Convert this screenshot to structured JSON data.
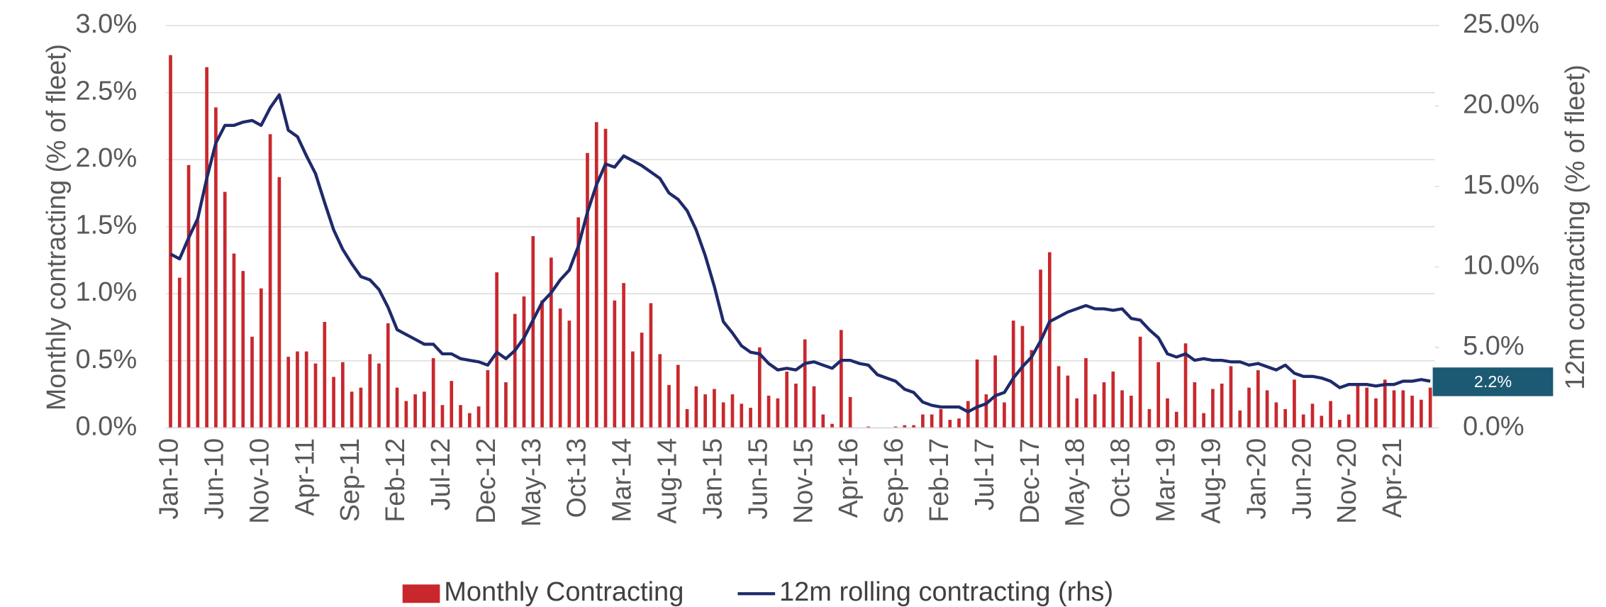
{
  "chart_data": {
    "type": "bar-line",
    "y_label": "Monthly contracting (% of fleet)",
    "y2_label": "12m contracting (% of fleet)",
    "annotation": "2.2%",
    "categories": [
      "Jan-10",
      null,
      null,
      null,
      null,
      "Jun-10",
      null,
      null,
      null,
      null,
      "Nov-10",
      null,
      null,
      null,
      null,
      "Apr-11",
      null,
      null,
      null,
      null,
      "Sep-11",
      null,
      null,
      null,
      null,
      "Feb-12",
      null,
      null,
      null,
      null,
      "Jul-12",
      null,
      null,
      null,
      null,
      "Dec-12",
      null,
      null,
      null,
      null,
      "May-13",
      null,
      null,
      null,
      null,
      "Oct-13",
      null,
      null,
      null,
      null,
      "Mar-14",
      null,
      null,
      null,
      null,
      "Aug-14",
      null,
      null,
      null,
      null,
      "Jan-15",
      null,
      null,
      null,
      null,
      "Jun-15",
      null,
      null,
      null,
      null,
      "Nov-15",
      null,
      null,
      null,
      null,
      "Apr-16",
      null,
      null,
      null,
      null,
      "Sep-16",
      null,
      null,
      null,
      null,
      "Feb-17",
      null,
      null,
      null,
      null,
      "Jul-17",
      null,
      null,
      null,
      null,
      "Dec-17",
      null,
      null,
      null,
      null,
      "May-18",
      null,
      null,
      null,
      null,
      "Oct-18",
      null,
      null,
      null,
      null,
      "Mar-19",
      null,
      null,
      null,
      null,
      "Aug-19",
      null,
      null,
      null,
      null,
      "Jan-20",
      null,
      null,
      null,
      null,
      "Jun-20",
      null,
      null,
      null,
      null,
      "Nov-20",
      null,
      null,
      null,
      null,
      "Apr-21",
      null,
      null,
      null,
      null
    ],
    "series": [
      {
        "name": "Monthly Contracting",
        "type": "bar",
        "color": "#c8282d",
        "values": [
          2.78,
          1.12,
          1.96,
          1.55,
          2.69,
          2.39,
          1.76,
          1.3,
          1.17,
          0.68,
          1.04,
          2.19,
          1.87,
          0.53,
          0.57,
          0.57,
          0.48,
          0.79,
          0.38,
          0.49,
          0.27,
          0.3,
          0.55,
          0.48,
          0.78,
          0.3,
          0.2,
          0.25,
          0.27,
          0.52,
          0.17,
          0.35,
          0.17,
          0.11,
          0.16,
          0.43,
          1.16,
          0.34,
          0.85,
          0.98,
          1.43,
          0.95,
          1.27,
          0.89,
          0.8,
          1.57,
          2.05,
          2.28,
          2.23,
          0.95,
          1.08,
          0.57,
          0.71,
          0.93,
          0.55,
          0.32,
          0.47,
          0.14,
          0.31,
          0.25,
          0.29,
          0.19,
          0.25,
          0.18,
          0.15,
          0.6,
          0.24,
          0.22,
          0.42,
          0.33,
          0.66,
          0.31,
          0.1,
          0.03,
          0.73,
          0.23,
          0.0,
          0.01,
          0.0,
          0.0,
          0.01,
          0.02,
          0.02,
          0.1,
          0.1,
          0.14,
          0.06,
          0.07,
          0.2,
          0.51,
          0.25,
          0.54,
          0.19,
          0.8,
          0.76,
          0.58,
          1.18,
          1.31,
          0.46,
          0.39,
          0.22,
          0.52,
          0.25,
          0.34,
          0.42,
          0.28,
          0.24,
          0.68,
          0.14,
          0.49,
          0.22,
          0.12,
          0.63,
          0.34,
          0.11,
          0.29,
          0.33,
          0.46,
          0.13,
          0.3,
          0.43,
          0.28,
          0.19,
          0.14,
          0.36,
          0.1,
          0.18,
          0.09,
          0.2,
          0.06,
          0.1,
          0.32,
          0.3,
          0.22,
          0.36,
          0.28,
          0.28,
          0.24,
          0.21,
          0.3
        ]
      },
      {
        "name": "12m rolling contracting (rhs)",
        "type": "line",
        "axis": "y2",
        "color": "#1f2a6b",
        "values": [
          10.8,
          10.5,
          11.8,
          13.0,
          15.5,
          17.7,
          18.8,
          18.8,
          19.0,
          19.1,
          18.8,
          19.9,
          20.7,
          18.5,
          18.1,
          16.9,
          15.8,
          14.0,
          12.3,
          11.1,
          10.2,
          9.4,
          9.2,
          8.6,
          7.5,
          6.1,
          5.8,
          5.5,
          5.2,
          5.2,
          4.6,
          4.6,
          4.3,
          4.2,
          4.1,
          3.9,
          4.7,
          4.3,
          4.8,
          5.6,
          6.7,
          7.8,
          8.4,
          9.2,
          9.8,
          11.3,
          13.4,
          15.1,
          16.4,
          16.2,
          16.9,
          16.6,
          16.3,
          15.9,
          15.5,
          14.6,
          14.2,
          13.5,
          12.3,
          10.7,
          8.8,
          6.6,
          5.9,
          5.1,
          4.7,
          4.6,
          4.0,
          3.6,
          3.7,
          3.6,
          4.0,
          4.1,
          3.9,
          3.7,
          4.2,
          4.2,
          4.0,
          3.9,
          3.3,
          3.1,
          2.9,
          2.4,
          2.2,
          1.6,
          1.4,
          1.3,
          1.3,
          1.3,
          1.0,
          1.3,
          1.5,
          2.0,
          2.2,
          3.1,
          3.8,
          4.4,
          5.4,
          6.6,
          6.9,
          7.2,
          7.4,
          7.6,
          7.4,
          7.4,
          7.3,
          7.4,
          6.8,
          6.7,
          6.1,
          5.6,
          4.6,
          4.4,
          4.6,
          4.2,
          4.3,
          4.2,
          4.2,
          4.1,
          4.1,
          3.9,
          4.0,
          3.8,
          3.6,
          3.9,
          3.4,
          3.2,
          3.2,
          3.1,
          2.9,
          2.5,
          2.7,
          2.7,
          2.7,
          2.6,
          2.7,
          2.7,
          2.9,
          2.9,
          3.0,
          2.9
        ]
      }
    ],
    "ylim": [
      0,
      3
    ],
    "yticks": [
      {
        "value": 0,
        "label": "0.0%"
      },
      {
        "value": 0.5,
        "label": "0.5%"
      },
      {
        "value": 1,
        "label": "1.0%"
      },
      {
        "value": 1.5,
        "label": "1.5%"
      },
      {
        "value": 2,
        "label": "2.0%"
      },
      {
        "value": 2.5,
        "label": "2.5%"
      },
      {
        "value": 3,
        "label": "3.0%"
      }
    ],
    "y2lim": [
      0,
      25
    ],
    "y2ticks": [
      {
        "value": 0,
        "label": "0.0%"
      },
      {
        "value": 5,
        "label": "5.0%"
      },
      {
        "value": 10,
        "label": "10.0%"
      },
      {
        "value": 15,
        "label": "15.0%"
      },
      {
        "value": 20,
        "label": "20.0%"
      },
      {
        "value": 25,
        "label": "25.0%"
      }
    ],
    "grid": true,
    "legend": "bottom"
  }
}
